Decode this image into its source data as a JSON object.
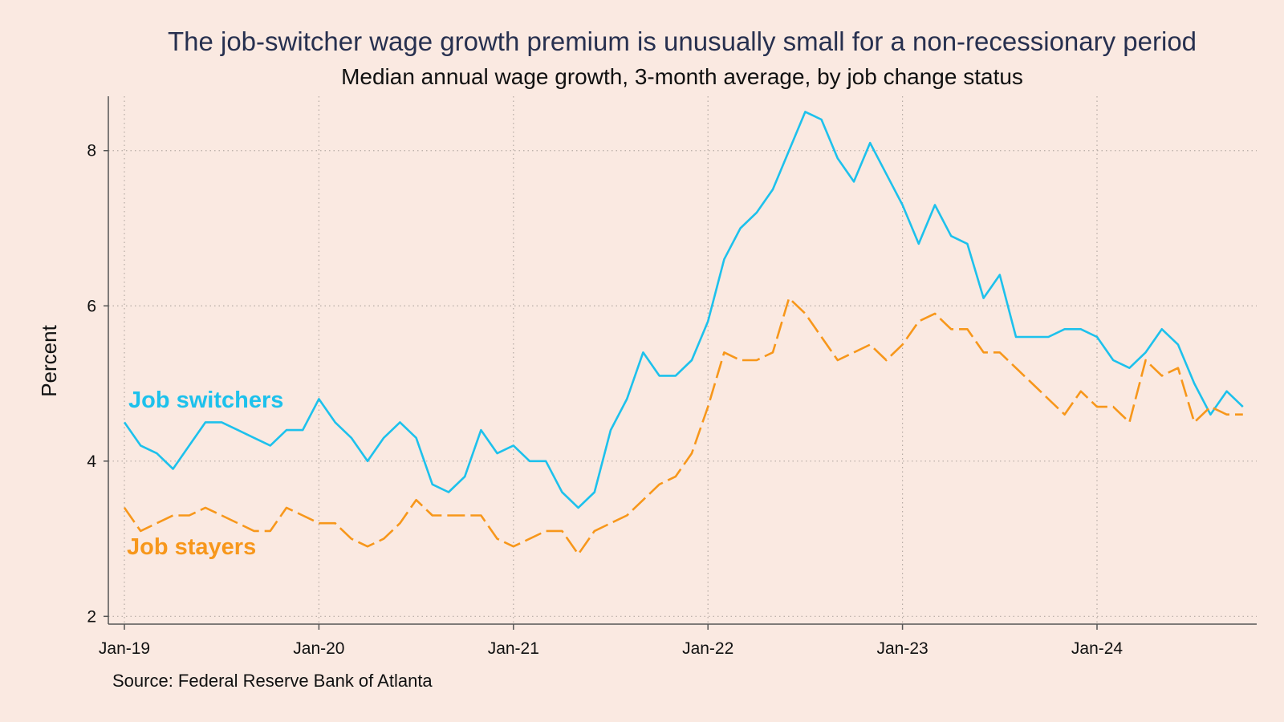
{
  "chart_data": {
    "type": "line",
    "title": "The job-switcher wage growth premium is unusually small for a non-recessionary period",
    "subtitle": "Median annual wage growth, 3-month average, by job change status",
    "ylabel": "Percent",
    "xlabel": "",
    "ylim": [
      1.9,
      8.7
    ],
    "yticks": [
      2,
      4,
      6,
      8
    ],
    "xticks": [
      {
        "label": "Jan-19",
        "index": 0
      },
      {
        "label": "Jan-20",
        "index": 12
      },
      {
        "label": "Jan-21",
        "index": 24
      },
      {
        "label": "Jan-22",
        "index": 36
      },
      {
        "label": "Jan-23",
        "index": 48
      },
      {
        "label": "Jan-24",
        "index": 60
      }
    ],
    "grid": true,
    "x_start": "Jan-19",
    "x_frequency": "monthly",
    "series": [
      {
        "name": "Job switchers",
        "color": "#1dc1ec",
        "dash": "solid",
        "values": [
          4.5,
          4.2,
          4.1,
          3.9,
          4.2,
          4.5,
          4.5,
          4.4,
          4.3,
          4.2,
          4.4,
          4.4,
          4.8,
          4.5,
          4.3,
          4.0,
          4.3,
          4.5,
          4.3,
          3.7,
          3.6,
          3.8,
          4.4,
          4.1,
          4.2,
          4.0,
          4.0,
          3.6,
          3.4,
          3.6,
          4.4,
          4.8,
          5.4,
          5.1,
          5.1,
          5.3,
          5.8,
          6.6,
          7.0,
          7.2,
          7.5,
          8.0,
          8.5,
          8.4,
          7.9,
          7.6,
          8.1,
          7.7,
          7.3,
          6.8,
          7.3,
          6.9,
          6.8,
          6.1,
          6.4,
          5.6,
          5.6,
          5.6,
          5.7,
          5.7,
          5.6,
          5.3,
          5.2,
          5.4,
          5.7,
          5.5,
          5.0,
          4.6,
          4.9,
          4.7
        ]
      },
      {
        "name": "Job stayers",
        "color": "#f7971b",
        "dash": "dashed",
        "values": [
          3.4,
          3.1,
          3.2,
          3.3,
          3.3,
          3.4,
          3.3,
          3.2,
          3.1,
          3.1,
          3.4,
          3.3,
          3.2,
          3.2,
          3.0,
          2.9,
          3.0,
          3.2,
          3.5,
          3.3,
          3.3,
          3.3,
          3.3,
          3.0,
          2.9,
          3.0,
          3.1,
          3.1,
          2.8,
          3.1,
          3.2,
          3.3,
          3.5,
          3.7,
          3.8,
          4.1,
          4.7,
          5.4,
          5.3,
          5.3,
          5.4,
          6.1,
          5.9,
          5.6,
          5.3,
          5.4,
          5.5,
          5.3,
          5.5,
          5.8,
          5.9,
          5.7,
          5.7,
          5.4,
          5.4,
          5.2,
          5.0,
          4.8,
          4.6,
          4.9,
          4.7,
          4.7,
          4.5,
          5.3,
          5.1,
          5.2,
          4.5,
          4.7,
          4.6,
          4.6
        ]
      }
    ],
    "annotations": [
      {
        "text": "Job switchers",
        "series": 0
      },
      {
        "text": "Job stayers",
        "series": 1
      }
    ],
    "source": "Source: Federal Reserve Bank of Atlanta"
  }
}
